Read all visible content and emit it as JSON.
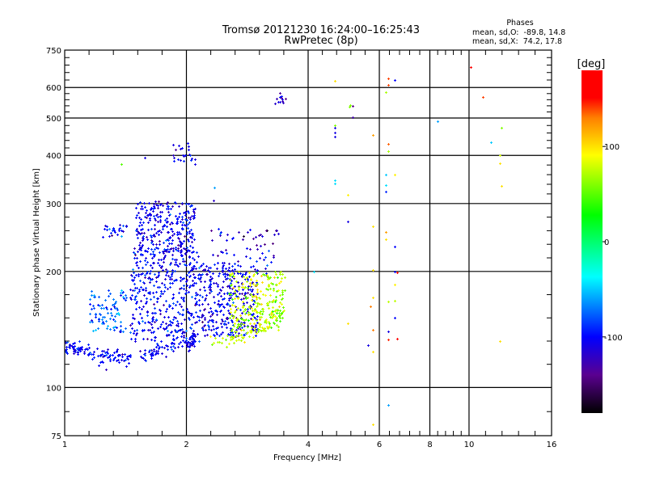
{
  "chart_data": {
    "type": "scatter",
    "title": "Tromsø 20121230 16:24:00–16:25:43",
    "subtitle": "RwPretec (8p)",
    "xlabel": "Frequency [MHz]",
    "ylabel": "Stationary phase Virtual Height [km]",
    "xscale": "log",
    "yscale": "log",
    "xlim": [
      1,
      16
    ],
    "ylim": [
      75,
      750
    ],
    "xticks": [
      1,
      2,
      4,
      6,
      8,
      10,
      16
    ],
    "xtick_labels": [
      "1",
      "2",
      "4",
      "6",
      "8",
      "10",
      "16"
    ],
    "xgrid": [
      2,
      4,
      6,
      8,
      10
    ],
    "yticks": [
      75,
      100,
      200,
      300,
      400,
      500,
      600,
      750
    ],
    "ytick_labels": [
      "75",
      "100",
      "200",
      "300",
      "400",
      "500",
      "600",
      "750"
    ],
    "ygrid": [
      100,
      200,
      300,
      400,
      500,
      600
    ],
    "grid": true,
    "legend": {
      "heading": "Phases",
      "line_o": "mean, sd,O:  -89.8, 14.8",
      "line_x": "mean, sd,X:  74.2, 17.8",
      "placement": "top-right"
    },
    "colorbar": {
      "label": "[deg]",
      "range": [
        -180,
        180
      ],
      "tick_values": [
        100,
        0,
        -100
      ],
      "tick_labels": [
        "100",
        "0",
        "-100"
      ],
      "stops": [
        {
          "value": -180,
          "color": "#000000"
        },
        {
          "value": -140,
          "color": "#5a0090"
        },
        {
          "value": -100,
          "color": "#0000ff"
        },
        {
          "value": -37,
          "color": "#00ffff"
        },
        {
          "value": 28,
          "color": "#00ff00"
        },
        {
          "value": 91,
          "color": "#ffff00"
        },
        {
          "value": 130,
          "color": "#ff8000"
        },
        {
          "value": 151,
          "color": "#ff0000"
        },
        {
          "value": 180,
          "color": "#ff0000"
        }
      ]
    },
    "point_clusters": [
      {
        "name": "o-trace-bottom",
        "n": 220,
        "trace_f": [
          1.0,
          1.1,
          1.25,
          1.4,
          1.6,
          1.8,
          2.0,
          2.1
        ],
        "trace_h": [
          128,
          125,
          121,
          120,
          122,
          126,
          131,
          134
        ],
        "jitter": 0.025,
        "phase_mean": -100,
        "phase_sd": 12
      },
      {
        "name": "o-cloud-main-upper",
        "n": 260,
        "f": [
          1.5,
          2.1
        ],
        "h": [
          225,
          305
        ],
        "phase_mean": -105,
        "phase_sd": 15
      },
      {
        "name": "o-cloud-main-lower",
        "n": 420,
        "f": [
          1.45,
          2.15
        ],
        "h": [
          132,
          230
        ],
        "phase_mean": -100,
        "phase_sd": 15
      },
      {
        "name": "o-cloud-second",
        "n": 330,
        "f": [
          2.15,
          3.0
        ],
        "h": [
          135,
          212
        ],
        "phase_mean": -105,
        "phase_sd": 15
      },
      {
        "name": "o-cloud-sparse",
        "n": 60,
        "f": [
          2.3,
          3.4
        ],
        "h": [
          195,
          260
        ],
        "phase_mean": -110,
        "phase_sd": 20
      },
      {
        "name": "o-cluster-left",
        "n": 90,
        "f": [
          1.15,
          1.42
        ],
        "h": [
          138,
          180
        ],
        "phase_mean": -75,
        "phase_sd": 15
      },
      {
        "name": "o-cluster-left-high",
        "n": 25,
        "f": [
          1.24,
          1.42
        ],
        "h": [
          245,
          265
        ],
        "phase_mean": -95,
        "phase_sd": 15
      },
      {
        "name": "o-scatter-400",
        "n": 22,
        "f": [
          1.85,
          2.1
        ],
        "h": [
          385,
          430
        ],
        "phase_mean": -105,
        "phase_sd": 15
      },
      {
        "name": "x-trace-bottom",
        "n": 70,
        "trace_f": [
          2.28,
          2.5,
          2.7,
          2.95,
          3.2,
          3.5
        ],
        "trace_h": [
          133,
          133,
          135,
          141,
          150,
          160
        ],
        "jitter": 0.02,
        "phase_mean": 75,
        "phase_sd": 12
      },
      {
        "name": "x-cloud",
        "n": 260,
        "f": [
          2.55,
          3.5
        ],
        "h": [
          140,
          200
        ],
        "phase_mean": 72,
        "phase_sd": 18
      },
      {
        "name": "high-cluster-3.5MHz",
        "n": 12,
        "f": [
          3.3,
          3.55
        ],
        "h": [
          545,
          585
        ],
        "phase_mean": -115,
        "phase_sd": 15
      }
    ],
    "isolated_points": [
      {
        "f": 4.66,
        "h": 624,
        "phase": 100
      },
      {
        "f": 6.31,
        "h": 634,
        "phase": 140
      },
      {
        "f": 6.55,
        "h": 627,
        "phase": -100
      },
      {
        "f": 6.31,
        "h": 610,
        "phase": 140
      },
      {
        "f": 10.1,
        "h": 678,
        "phase": 160
      },
      {
        "f": 6.22,
        "h": 584,
        "phase": 70
      },
      {
        "f": 10.8,
        "h": 566,
        "phase": 140
      },
      {
        "f": 5.08,
        "h": 540,
        "phase": 60
      },
      {
        "f": 5.05,
        "h": 536,
        "phase": 60
      },
      {
        "f": 5.15,
        "h": 538,
        "phase": -140
      },
      {
        "f": 5.15,
        "h": 502,
        "phase": -130
      },
      {
        "f": 4.66,
        "h": 479,
        "phase": 60
      },
      {
        "f": 4.66,
        "h": 472,
        "phase": -110
      },
      {
        "f": 4.66,
        "h": 458,
        "phase": -110
      },
      {
        "f": 4.66,
        "h": 448,
        "phase": -110
      },
      {
        "f": 5.78,
        "h": 452,
        "phase": 120
      },
      {
        "f": 6.31,
        "h": 428,
        "phase": 135
      },
      {
        "f": 6.31,
        "h": 410,
        "phase": 70
      },
      {
        "f": 8.36,
        "h": 491,
        "phase": -60
      },
      {
        "f": 12.0,
        "h": 472,
        "phase": 60
      },
      {
        "f": 11.33,
        "h": 433,
        "phase": -50
      },
      {
        "f": 11.9,
        "h": 400,
        "phase": 80
      },
      {
        "f": 11.9,
        "h": 382,
        "phase": 100
      },
      {
        "f": 12.0,
        "h": 333,
        "phase": 100
      },
      {
        "f": 6.22,
        "h": 357,
        "phase": -50
      },
      {
        "f": 6.55,
        "h": 357,
        "phase": 95
      },
      {
        "f": 4.66,
        "h": 345,
        "phase": -45
      },
      {
        "f": 4.66,
        "h": 338,
        "phase": -45
      },
      {
        "f": 6.22,
        "h": 335,
        "phase": -45
      },
      {
        "f": 6.22,
        "h": 322,
        "phase": -90
      },
      {
        "f": 5.01,
        "h": 316,
        "phase": 95
      },
      {
        "f": 5.01,
        "h": 270,
        "phase": -110
      },
      {
        "f": 5.78,
        "h": 262,
        "phase": 100
      },
      {
        "f": 6.22,
        "h": 253,
        "phase": 120
      },
      {
        "f": 6.22,
        "h": 242,
        "phase": 100
      },
      {
        "f": 6.55,
        "h": 232,
        "phase": -100
      },
      {
        "f": 4.13,
        "h": 200,
        "phase": -45
      },
      {
        "f": 5.78,
        "h": 202,
        "phase": 100
      },
      {
        "f": 6.55,
        "h": 200,
        "phase": -100
      },
      {
        "f": 6.64,
        "h": 199,
        "phase": 150
      },
      {
        "f": 6.55,
        "h": 185,
        "phase": 95
      },
      {
        "f": 5.78,
        "h": 171,
        "phase": 100
      },
      {
        "f": 6.31,
        "h": 167,
        "phase": 75
      },
      {
        "f": 6.55,
        "h": 168,
        "phase": 75
      },
      {
        "f": 5.7,
        "h": 162,
        "phase": 130
      },
      {
        "f": 6.55,
        "h": 152,
        "phase": -100
      },
      {
        "f": 5.01,
        "h": 147,
        "phase": 100
      },
      {
        "f": 5.78,
        "h": 141,
        "phase": 130
      },
      {
        "f": 6.31,
        "h": 140,
        "phase": -110
      },
      {
        "f": 6.64,
        "h": 134,
        "phase": 160
      },
      {
        "f": 6.31,
        "h": 133,
        "phase": 145
      },
      {
        "f": 5.62,
        "h": 129,
        "phase": -110
      },
      {
        "f": 5.78,
        "h": 124,
        "phase": 100
      },
      {
        "f": 11.9,
        "h": 132,
        "phase": 100
      },
      {
        "f": 6.31,
        "h": 90,
        "phase": -60
      },
      {
        "f": 5.78,
        "h": 80.3,
        "phase": 100
      },
      {
        "f": 1.38,
        "h": 380,
        "phase": 50
      },
      {
        "f": 1.58,
        "h": 395,
        "phase": -110
      },
      {
        "f": 2.34,
        "h": 330,
        "phase": -60
      },
      {
        "f": 2.33,
        "h": 305,
        "phase": -120
      },
      {
        "f": 3.15,
        "h": 255,
        "phase": -140
      },
      {
        "f": 2.1,
        "h": 380,
        "phase": -110
      }
    ]
  }
}
